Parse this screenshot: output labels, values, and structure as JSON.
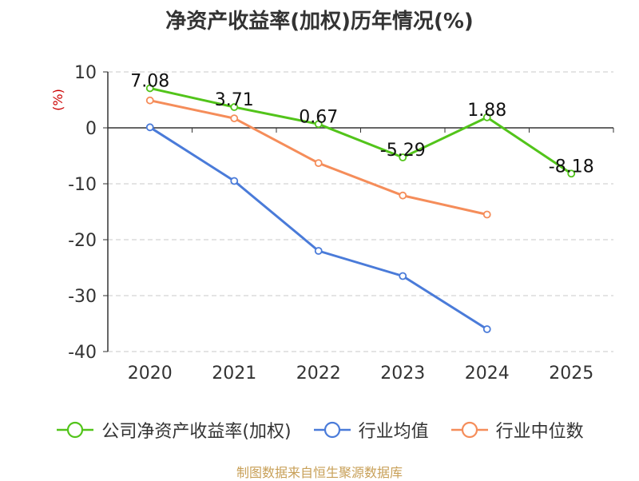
{
  "chart_data": {
    "type": "line",
    "title": "净资产收益率(加权)历年情况(%)",
    "ylabel": "(%)",
    "categories": [
      "2020",
      "2021",
      "2022",
      "2023",
      "2024",
      "2025"
    ],
    "ylim": [
      -40,
      10
    ],
    "yticks": [
      10,
      0,
      -10,
      -20,
      -30,
      -40
    ],
    "grid": true,
    "legend_position": "bottom",
    "series": [
      {
        "name": "公司净资产收益率(加权)",
        "color": "#52c41a",
        "values": [
          7.08,
          3.71,
          0.67,
          -5.29,
          1.88,
          -8.18
        ],
        "labels": [
          "7.08",
          "3.71",
          "0.67",
          "-5.29",
          "1.88",
          "-8.18"
        ]
      },
      {
        "name": "行业均值",
        "color": "#4a7bd9",
        "values": [
          0.1,
          -9.5,
          -22.0,
          -26.5,
          -36.0,
          null
        ]
      },
      {
        "name": "行业中位数",
        "color": "#f58d5a",
        "values": [
          4.9,
          1.7,
          -6.3,
          -12.1,
          -15.5,
          null
        ]
      }
    ]
  },
  "source": "制图数据来自恒生聚源数据库"
}
